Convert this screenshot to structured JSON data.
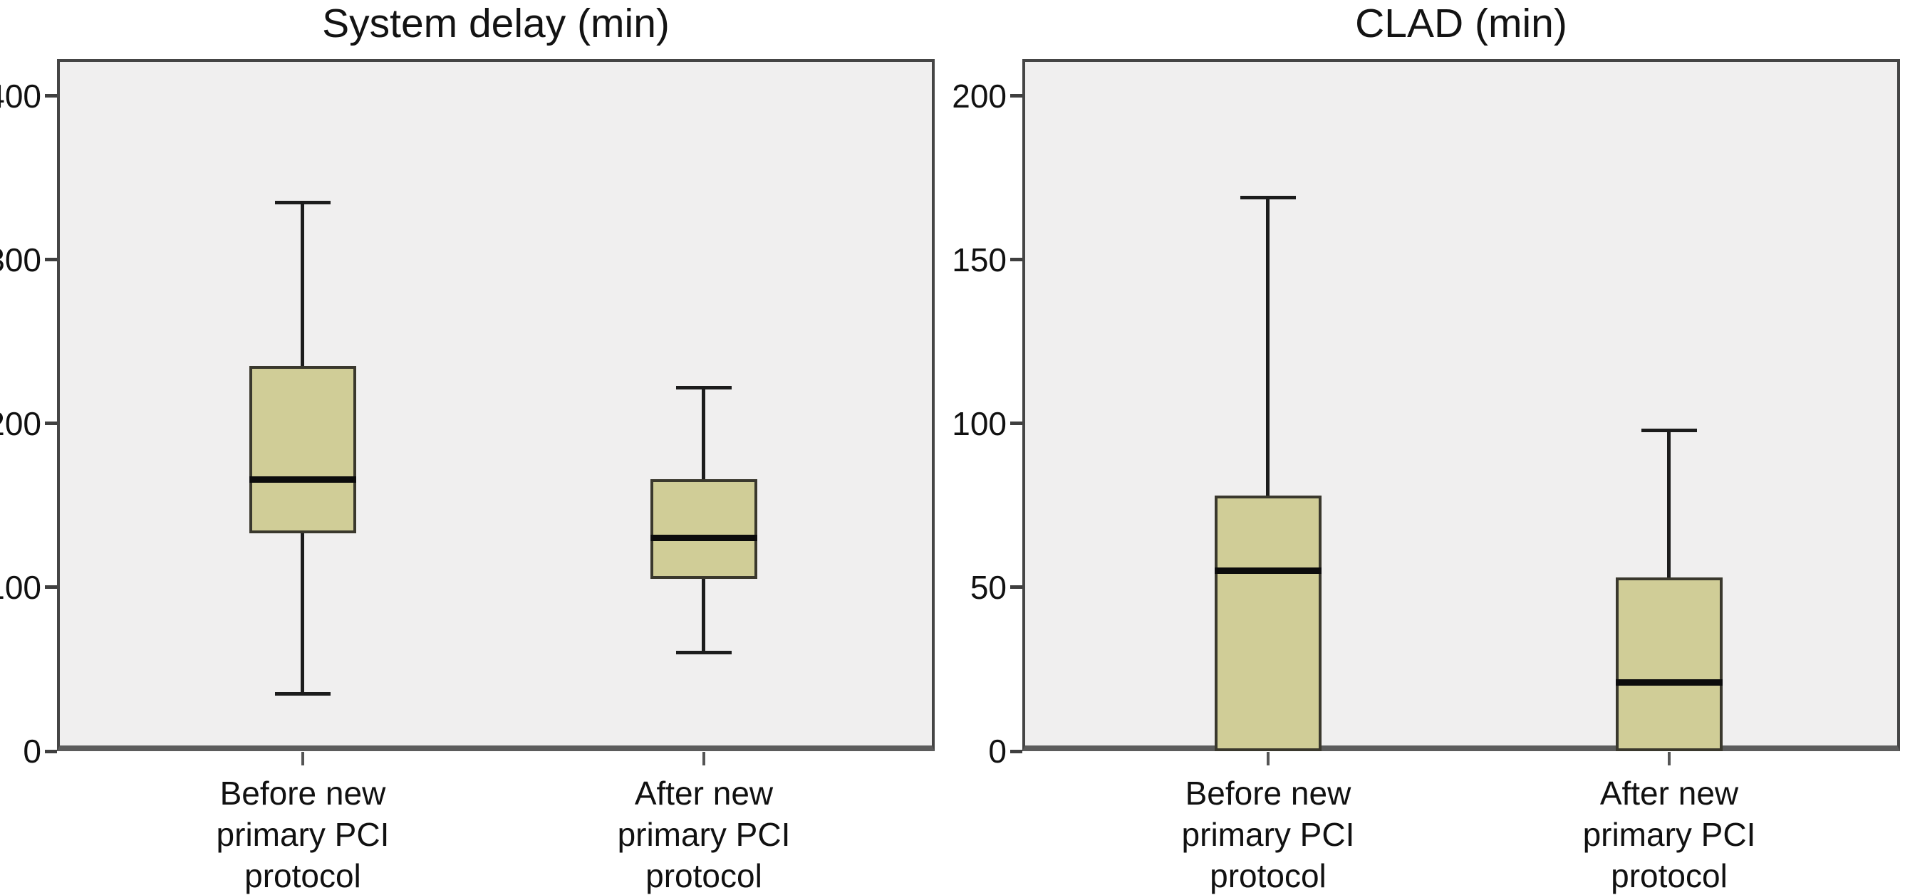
{
  "figure": {
    "background": "#ffffff",
    "text_color": "#131313"
  },
  "styles": {
    "plot_background": "#f0efef",
    "plot_border_color": "#454545",
    "axis_line_color": "#5c5c5c",
    "box_fill": "#d0cd97",
    "box_border": "#3a382d",
    "median_color": "#0c0c0c",
    "whisker_color": "#1c1c1c",
    "tick_color": "#3f3f3f"
  },
  "chart_data": [
    {
      "type": "box",
      "title": "System delay (min)",
      "xlabel": "",
      "ylabel": "",
      "ylim": [
        0,
        422.6
      ],
      "yticks": [
        0,
        100,
        200,
        300,
        400
      ],
      "grid": false,
      "legend_position": "none",
      "categories": [
        [
          "Before new",
          "primary PCI",
          "protocol"
        ],
        [
          "After new",
          "primary PCI",
          "protocol"
        ]
      ],
      "series": [
        {
          "category": "Before new primary PCI protocol",
          "min": 35,
          "q1": 133,
          "median": 166,
          "q3": 235,
          "max": 335
        },
        {
          "category": "After new primary PCI protocol",
          "min": 60,
          "q1": 105,
          "median": 130,
          "q3": 166,
          "max": 222
        }
      ]
    },
    {
      "type": "box",
      "title": "CLAD (min)",
      "xlabel": "",
      "ylabel": "",
      "ylim": [
        0,
        211.3
      ],
      "yticks": [
        0,
        50,
        100,
        150,
        200
      ],
      "grid": false,
      "legend_position": "none",
      "categories": [
        [
          "Before new",
          "primary PCI",
          "protocol"
        ],
        [
          "After new",
          "primary PCI",
          "protocol"
        ]
      ],
      "series": [
        {
          "category": "Before new primary PCI protocol",
          "min": 0,
          "q1": 0,
          "median": 55,
          "q3": 78,
          "max": 169
        },
        {
          "category": "After new primary PCI protocol",
          "min": 0,
          "q1": 0,
          "median": 21,
          "q3": 53,
          "max": 98
        }
      ]
    }
  ]
}
